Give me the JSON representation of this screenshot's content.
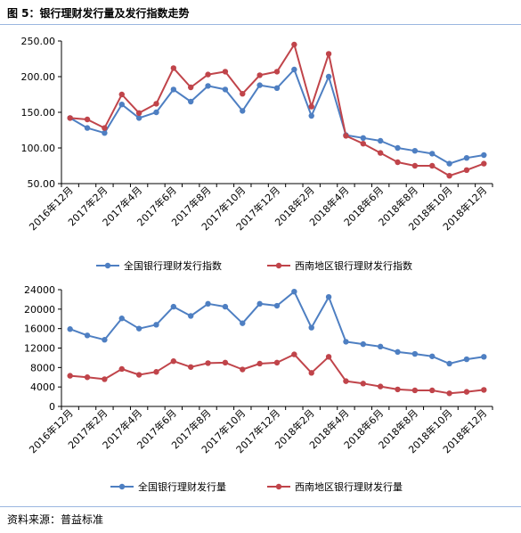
{
  "figure": {
    "title": "图 5：银行理财发行量及发行指数走势",
    "source": "资料来源：普益标准"
  },
  "colors": {
    "series1": "#4e7fc2",
    "series2": "#c0444a",
    "rule": "#9bb6e0",
    "axis": "#000000"
  },
  "chart_data": [
    {
      "type": "line",
      "title": "",
      "xlabel": "",
      "ylabel": "",
      "ylim": [
        50,
        250
      ],
      "yticks": [
        "50.00",
        "100.00",
        "150.00",
        "200.00",
        "250.00"
      ],
      "grid": false,
      "legend": "bottom",
      "x": [
        "2016年12月",
        "2017年1月",
        "2017年2月",
        "2017年3月",
        "2017年4月",
        "2017年5月",
        "2017年6月",
        "2017年7月",
        "2017年8月",
        "2017年9月",
        "2017年10月",
        "2017年11月",
        "2017年12月",
        "2018年1月",
        "2018年2月",
        "2018年3月",
        "2018年4月",
        "2018年5月",
        "2018年6月",
        "2018年7月",
        "2018年8月",
        "2018年9月",
        "2018年10月",
        "2018年11月",
        "2018年12月"
      ],
      "xtick_labels": [
        "2016年12月",
        "2017年2月",
        "2017年4月",
        "2017年6月",
        "2017年8月",
        "2017年10月",
        "2017年12月",
        "2018年2月",
        "2018年4月",
        "2018年6月",
        "2018年8月",
        "2018年10月",
        "2018年12月"
      ],
      "series": [
        {
          "name": "全国银行理财发行指数",
          "values": [
            142,
            128,
            121,
            161,
            142,
            150,
            182,
            165,
            187,
            182,
            152,
            188,
            184,
            210,
            145,
            200,
            118,
            114,
            110,
            100,
            96,
            92,
            78,
            86,
            90
          ]
        },
        {
          "name": "西南地区银行理财发行指数",
          "values": [
            142,
            140,
            128,
            175,
            149,
            162,
            212,
            185,
            203,
            207,
            176,
            202,
            207,
            245,
            158,
            232,
            117,
            106,
            93,
            80,
            75,
            75,
            61,
            69,
            78
          ]
        }
      ]
    },
    {
      "type": "line",
      "title": "",
      "xlabel": "",
      "ylabel": "",
      "ylim": [
        0,
        24000
      ],
      "yticks": [
        "0",
        "4000",
        "8000",
        "12000",
        "16000",
        "20000",
        "24000"
      ],
      "grid": false,
      "legend": "bottom",
      "x": [
        "2016年12月",
        "2017年1月",
        "2017年2月",
        "2017年3月",
        "2017年4月",
        "2017年5月",
        "2017年6月",
        "2017年7月",
        "2017年8月",
        "2017年9月",
        "2017年10月",
        "2017年11月",
        "2017年12月",
        "2018年1月",
        "2018年2月",
        "2018年3月",
        "2018年4月",
        "2018年5月",
        "2018年6月",
        "2018年7月",
        "2018年8月",
        "2018年9月",
        "2018年10月",
        "2018年11月",
        "2018年12月"
      ],
      "xtick_labels": [
        "2016年12月",
        "2017年2月",
        "2017年4月",
        "2017年6月",
        "2017年8月",
        "2017年10月",
        "2017年12月",
        "2018年2月",
        "2018年4月",
        "2018年6月",
        "2018年8月",
        "2018年10月",
        "2018年12月"
      ],
      "series": [
        {
          "name": "全国银行理财发行量",
          "values": [
            15900,
            14600,
            13700,
            18100,
            16000,
            16800,
            20500,
            18600,
            21100,
            20500,
            17100,
            21100,
            20700,
            23600,
            16200,
            22500,
            13300,
            12800,
            12300,
            11200,
            10800,
            10300,
            8800,
            9700,
            10200
          ]
        },
        {
          "name": "西南地区银行理财发行量",
          "values": [
            6300,
            6000,
            5600,
            7700,
            6500,
            7100,
            9300,
            8100,
            8900,
            9000,
            7600,
            8800,
            9000,
            10700,
            6900,
            10200,
            5200,
            4700,
            4100,
            3500,
            3300,
            3300,
            2700,
            3000,
            3400
          ]
        }
      ]
    }
  ]
}
